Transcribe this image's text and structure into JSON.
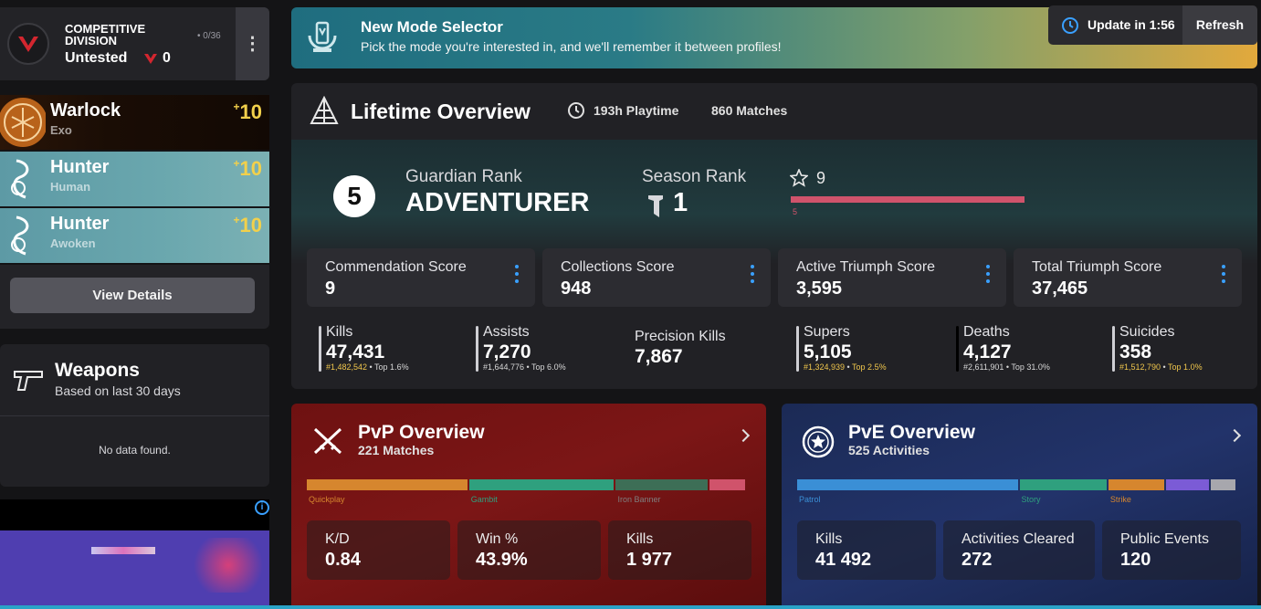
{
  "competitive": {
    "title_line1": "COMPETITIVE",
    "title_line2": "DIVISION",
    "rank": "Untested",
    "points": "0",
    "progress": "0/36"
  },
  "characters": [
    {
      "class": "Warlock",
      "race": "Exo",
      "power_prefix": "+",
      "power": "10"
    },
    {
      "class": "Hunter",
      "race": "Human",
      "power_prefix": "+",
      "power": "10"
    },
    {
      "class": "Hunter",
      "race": "Awoken",
      "power_prefix": "+",
      "power": "10"
    }
  ],
  "view_details_label": "View Details",
  "weapons": {
    "title": "Weapons",
    "subtitle": "Based on last 30 days",
    "empty": "No data found."
  },
  "mode_banner": {
    "title": "New Mode Selector",
    "text": "Pick the mode you're interested in, and we'll remember it between profiles!"
  },
  "update": {
    "label": "Update in 1:56",
    "refresh": "Refresh"
  },
  "lifetime": {
    "title": "Lifetime Overview",
    "playtime": "193h Playtime",
    "matches": "860 Matches",
    "guardian_rank_num": "5",
    "guardian_rank_label": "Guardian Rank",
    "guardian_rank_name": "ADVENTURER",
    "season_rank_label": "Season Rank",
    "season_rank_value": "1",
    "reputation_value": "9",
    "reputation_bar_label": "5",
    "scores": [
      {
        "label": "Commendation Score",
        "value": "9"
      },
      {
        "label": "Collections Score",
        "value": "948"
      },
      {
        "label": "Active Triumph Score",
        "value": "3,595"
      },
      {
        "label": "Total Triumph Score",
        "value": "37,465"
      }
    ],
    "stats": [
      {
        "label": "Kills",
        "value": "47,431",
        "rank": "#1,482,542",
        "top": "Top 1.6%"
      },
      {
        "label": "Assists",
        "value": "7,270",
        "rank": "#1,644,776",
        "top": "Top 6.0%"
      },
      {
        "label": "Precision Kills",
        "value": "7,867",
        "rank": "",
        "top": ""
      },
      {
        "label": "Supers",
        "value": "5,105",
        "rank": "#1,324,939",
        "top": "Top 2.5%"
      },
      {
        "label": "Deaths",
        "value": "4,127",
        "rank": "#2,611,901",
        "top": "Top 31.0%"
      },
      {
        "label": "Suicides",
        "value": "358",
        "rank": "#1,512,790",
        "top": "Top 1.0%"
      }
    ]
  },
  "pvp": {
    "title": "PvP Overview",
    "subtitle": "221 Matches",
    "segments": [
      {
        "label": "Quickplay",
        "share": 0.365,
        "color": "#d6862e"
      },
      {
        "label": "Gambit",
        "share": 0.33,
        "color": "#2fa07e"
      },
      {
        "label": "Iron Banner",
        "share": 0.21,
        "color": "#3d6e56"
      },
      {
        "label": "",
        "share": 0.085,
        "color": "#d0536b"
      }
    ],
    "segment_label_colors": [
      "#d6862e",
      "#2fa07e",
      "#7f7f7f"
    ],
    "stats": [
      {
        "label": "K/D",
        "value": "0.84"
      },
      {
        "label": "Win %",
        "value": "43.9%"
      },
      {
        "label": "Kills",
        "value": "1 977"
      }
    ]
  },
  "pve": {
    "title": "PvE Overview",
    "subtitle": "525 Activities",
    "segments": [
      {
        "label": "Patrol",
        "share": 0.5,
        "color": "#3a8fd6"
      },
      {
        "label": "Story",
        "share": 0.2,
        "color": "#2fa07e"
      },
      {
        "label": "Strike",
        "share": 0.13,
        "color": "#d6862e"
      },
      {
        "label": "",
        "share": 0.1,
        "color": "#7b5bd6"
      },
      {
        "label": "",
        "share": 0.06,
        "color": "#a7a7ad"
      }
    ],
    "segment_label_colors": [
      "#3a8fd6",
      "#2fa07e",
      "#d6862e"
    ],
    "stats": [
      {
        "label": "Kills",
        "value": "41 492"
      },
      {
        "label": "Activities Cleared",
        "value": "272"
      },
      {
        "label": "Public Events",
        "value": "120"
      }
    ]
  }
}
